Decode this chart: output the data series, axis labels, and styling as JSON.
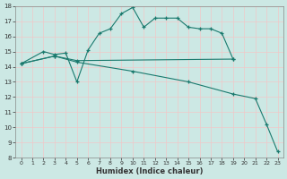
{
  "xlabel": "Humidex (Indice chaleur)",
  "xlim": [
    -0.5,
    23.5
  ],
  "ylim": [
    8,
    18
  ],
  "yticks": [
    8,
    9,
    10,
    11,
    12,
    13,
    14,
    15,
    16,
    17,
    18
  ],
  "xticks": [
    0,
    1,
    2,
    3,
    4,
    5,
    6,
    7,
    8,
    9,
    10,
    11,
    12,
    13,
    14,
    15,
    16,
    17,
    18,
    19,
    20,
    21,
    22,
    23
  ],
  "line_color": "#1a7a6e",
  "bg_color": "#cce8e4",
  "grid_major_color": "#f0c8c8",
  "grid_minor_color": "#ddecea",
  "lines": [
    {
      "x": [
        0,
        2,
        3,
        4,
        5,
        6,
        7,
        8,
        9,
        10,
        11,
        12,
        13,
        14,
        15,
        16,
        17,
        18,
        19
      ],
      "y": [
        14.2,
        15.0,
        14.8,
        14.9,
        13.0,
        15.1,
        16.2,
        16.5,
        17.5,
        17.9,
        16.6,
        17.2,
        17.2,
        17.2,
        16.6,
        16.5,
        16.5,
        16.2,
        14.5
      ]
    },
    {
      "x": [
        0,
        3,
        5,
        19
      ],
      "y": [
        14.2,
        14.7,
        14.4,
        14.5
      ]
    },
    {
      "x": [
        0,
        3,
        5,
        10,
        15,
        19,
        21,
        22,
        23
      ],
      "y": [
        14.2,
        14.7,
        14.3,
        13.7,
        13.0,
        12.2,
        11.9,
        10.2,
        8.4
      ]
    }
  ]
}
